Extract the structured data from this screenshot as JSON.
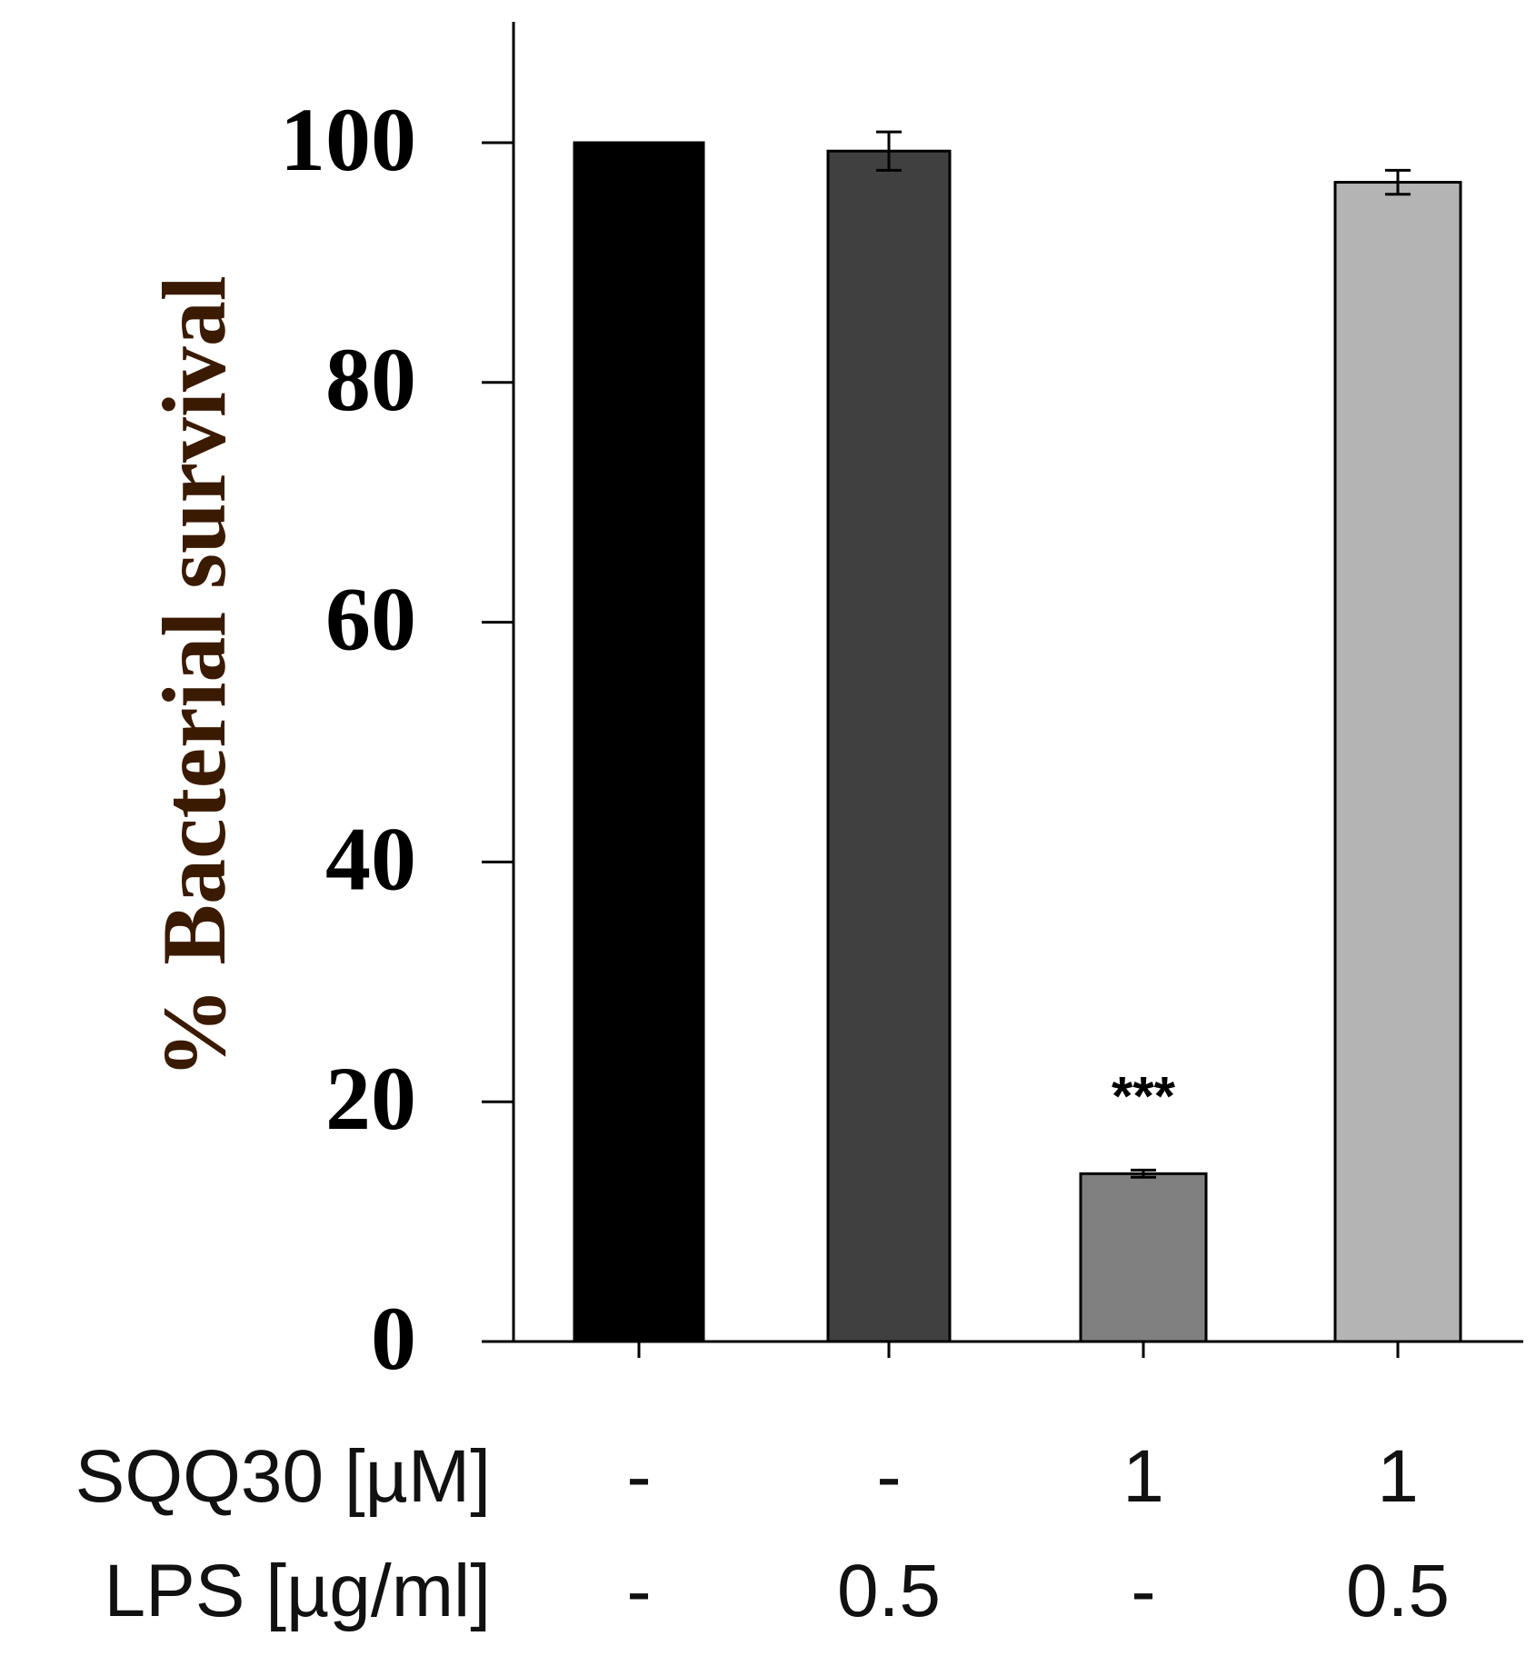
{
  "chart_data": {
    "type": "bar",
    "title": "",
    "xlabel": "",
    "ylabel": "% Bacterial survival",
    "ylim": [
      0,
      110
    ],
    "yticks": [
      0,
      20,
      40,
      60,
      80,
      100
    ],
    "grid": false,
    "categories": [
      "-/-",
      "-/0.5",
      "1/-",
      "1/0.5"
    ],
    "values": [
      100,
      99.3,
      14.0,
      96.7
    ],
    "errors": [
      0,
      1.6,
      0.3,
      1.0
    ],
    "bar_colors": [
      "#000000",
      "#404040",
      "#808080",
      "#b4b4b4"
    ],
    "annotations": [
      {
        "bar_index": 2,
        "text": "***"
      }
    ],
    "condition_rows": [
      {
        "label": "SQQ30 [µM]",
        "values": [
          "-",
          "-",
          "1",
          "1"
        ]
      },
      {
        "label": "LPS [µg/ml]",
        "values": [
          "-",
          "0.5",
          "-",
          "0.5"
        ]
      }
    ]
  }
}
